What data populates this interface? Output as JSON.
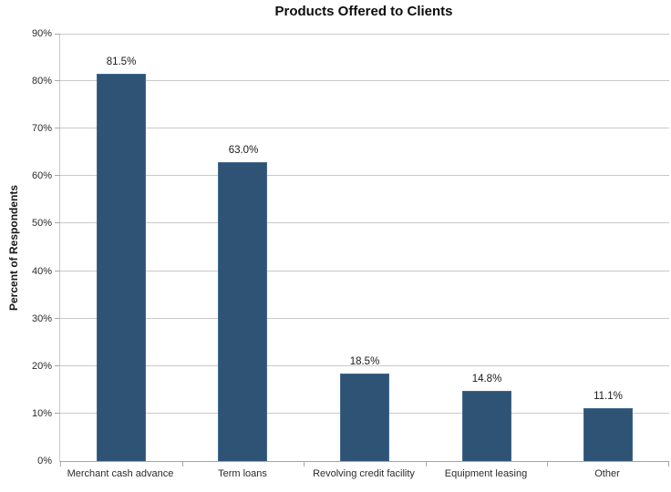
{
  "chart_data": {
    "type": "bar",
    "title": "Products Offered to Clients",
    "xlabel": "",
    "ylabel": "Percent of Respondents",
    "categories": [
      "Merchant cash advance",
      "Term loans",
      "Revolving credit facility",
      "Equipment leasing",
      "Other"
    ],
    "values": [
      81.5,
      63.0,
      18.5,
      14.8,
      11.1
    ],
    "data_labels": [
      "81.5%",
      "63.0%",
      "18.5%",
      "14.8%",
      "11.1%"
    ],
    "ylim": [
      0,
      90
    ],
    "ytick_step": 10,
    "ytick_labels": [
      "0%",
      "10%",
      "20%",
      "30%",
      "40%",
      "50%",
      "60%",
      "70%",
      "80%",
      "90%"
    ],
    "grid": "horizontal-on",
    "legend": "none",
    "colors": {
      "bar_fill": "#2e5374",
      "bar_border": "#42688e",
      "gridline": "#c9c9c9",
      "axis_line": "#a3a3a3",
      "text": "#2b2b2b",
      "background": "#ffffff"
    }
  }
}
